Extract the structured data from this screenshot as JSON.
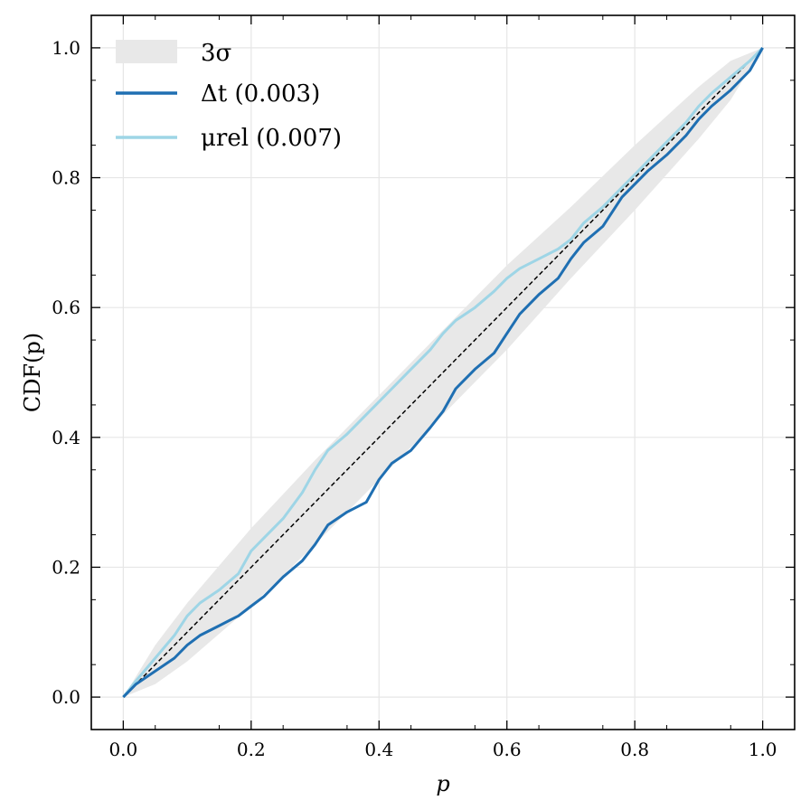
{
  "chart_data": {
    "type": "line",
    "xlabel": "p",
    "ylabel": "CDF(p)",
    "xlim": [
      -0.05,
      1.05
    ],
    "ylim": [
      -0.05,
      1.05
    ],
    "xticks": [
      "0.0",
      "0.2",
      "0.4",
      "0.6",
      "0.8",
      "1.0"
    ],
    "yticks": [
      "0.0",
      "0.2",
      "0.4",
      "0.6",
      "0.8",
      "1.0"
    ],
    "grid": true,
    "legend_position": "top-left",
    "band": {
      "name": "3σ",
      "color": "#e8e8e8",
      "x": [
        0,
        0.05,
        0.1,
        0.2,
        0.3,
        0.4,
        0.5,
        0.6,
        0.7,
        0.8,
        0.9,
        0.95,
        1.0
      ],
      "lower": [
        0,
        0.02,
        0.055,
        0.14,
        0.235,
        0.335,
        0.435,
        0.535,
        0.645,
        0.75,
        0.86,
        0.92,
        1.0
      ],
      "upper": [
        0,
        0.08,
        0.145,
        0.26,
        0.365,
        0.465,
        0.565,
        0.665,
        0.755,
        0.85,
        0.94,
        0.98,
        1.0
      ]
    },
    "reference_line": {
      "x": [
        0,
        1
      ],
      "y": [
        0,
        1
      ],
      "color": "#000000",
      "style": "dashed"
    },
    "series": [
      {
        "name": "Δt (0.003)",
        "color": "#1f6fb2",
        "x": [
          0,
          0.02,
          0.05,
          0.08,
          0.1,
          0.12,
          0.15,
          0.18,
          0.2,
          0.22,
          0.25,
          0.28,
          0.3,
          0.32,
          0.35,
          0.38,
          0.4,
          0.42,
          0.45,
          0.48,
          0.5,
          0.52,
          0.55,
          0.58,
          0.6,
          0.62,
          0.65,
          0.68,
          0.7,
          0.72,
          0.75,
          0.78,
          0.8,
          0.82,
          0.85,
          0.88,
          0.9,
          0.92,
          0.95,
          0.98,
          1.0
        ],
        "y": [
          0,
          0.02,
          0.04,
          0.06,
          0.08,
          0.095,
          0.11,
          0.125,
          0.14,
          0.155,
          0.185,
          0.21,
          0.235,
          0.265,
          0.285,
          0.3,
          0.335,
          0.36,
          0.38,
          0.415,
          0.44,
          0.475,
          0.505,
          0.53,
          0.56,
          0.59,
          0.62,
          0.645,
          0.675,
          0.7,
          0.725,
          0.77,
          0.79,
          0.81,
          0.835,
          0.865,
          0.89,
          0.91,
          0.935,
          0.965,
          1.0
        ]
      },
      {
        "name": "μrel (0.007)",
        "color": "#9ed5e6",
        "x": [
          0,
          0.02,
          0.05,
          0.08,
          0.1,
          0.12,
          0.15,
          0.18,
          0.2,
          0.22,
          0.25,
          0.28,
          0.3,
          0.32,
          0.35,
          0.38,
          0.4,
          0.42,
          0.45,
          0.48,
          0.5,
          0.52,
          0.55,
          0.58,
          0.6,
          0.62,
          0.65,
          0.68,
          0.7,
          0.72,
          0.75,
          0.78,
          0.8,
          0.82,
          0.85,
          0.88,
          0.9,
          0.92,
          0.95,
          0.98,
          1.0
        ],
        "y": [
          0,
          0.025,
          0.06,
          0.095,
          0.125,
          0.145,
          0.165,
          0.19,
          0.225,
          0.245,
          0.275,
          0.315,
          0.35,
          0.38,
          0.405,
          0.435,
          0.455,
          0.475,
          0.505,
          0.535,
          0.56,
          0.58,
          0.6,
          0.625,
          0.645,
          0.66,
          0.675,
          0.69,
          0.705,
          0.73,
          0.755,
          0.785,
          0.805,
          0.825,
          0.855,
          0.885,
          0.91,
          0.93,
          0.955,
          0.98,
          1.0
        ]
      }
    ]
  }
}
